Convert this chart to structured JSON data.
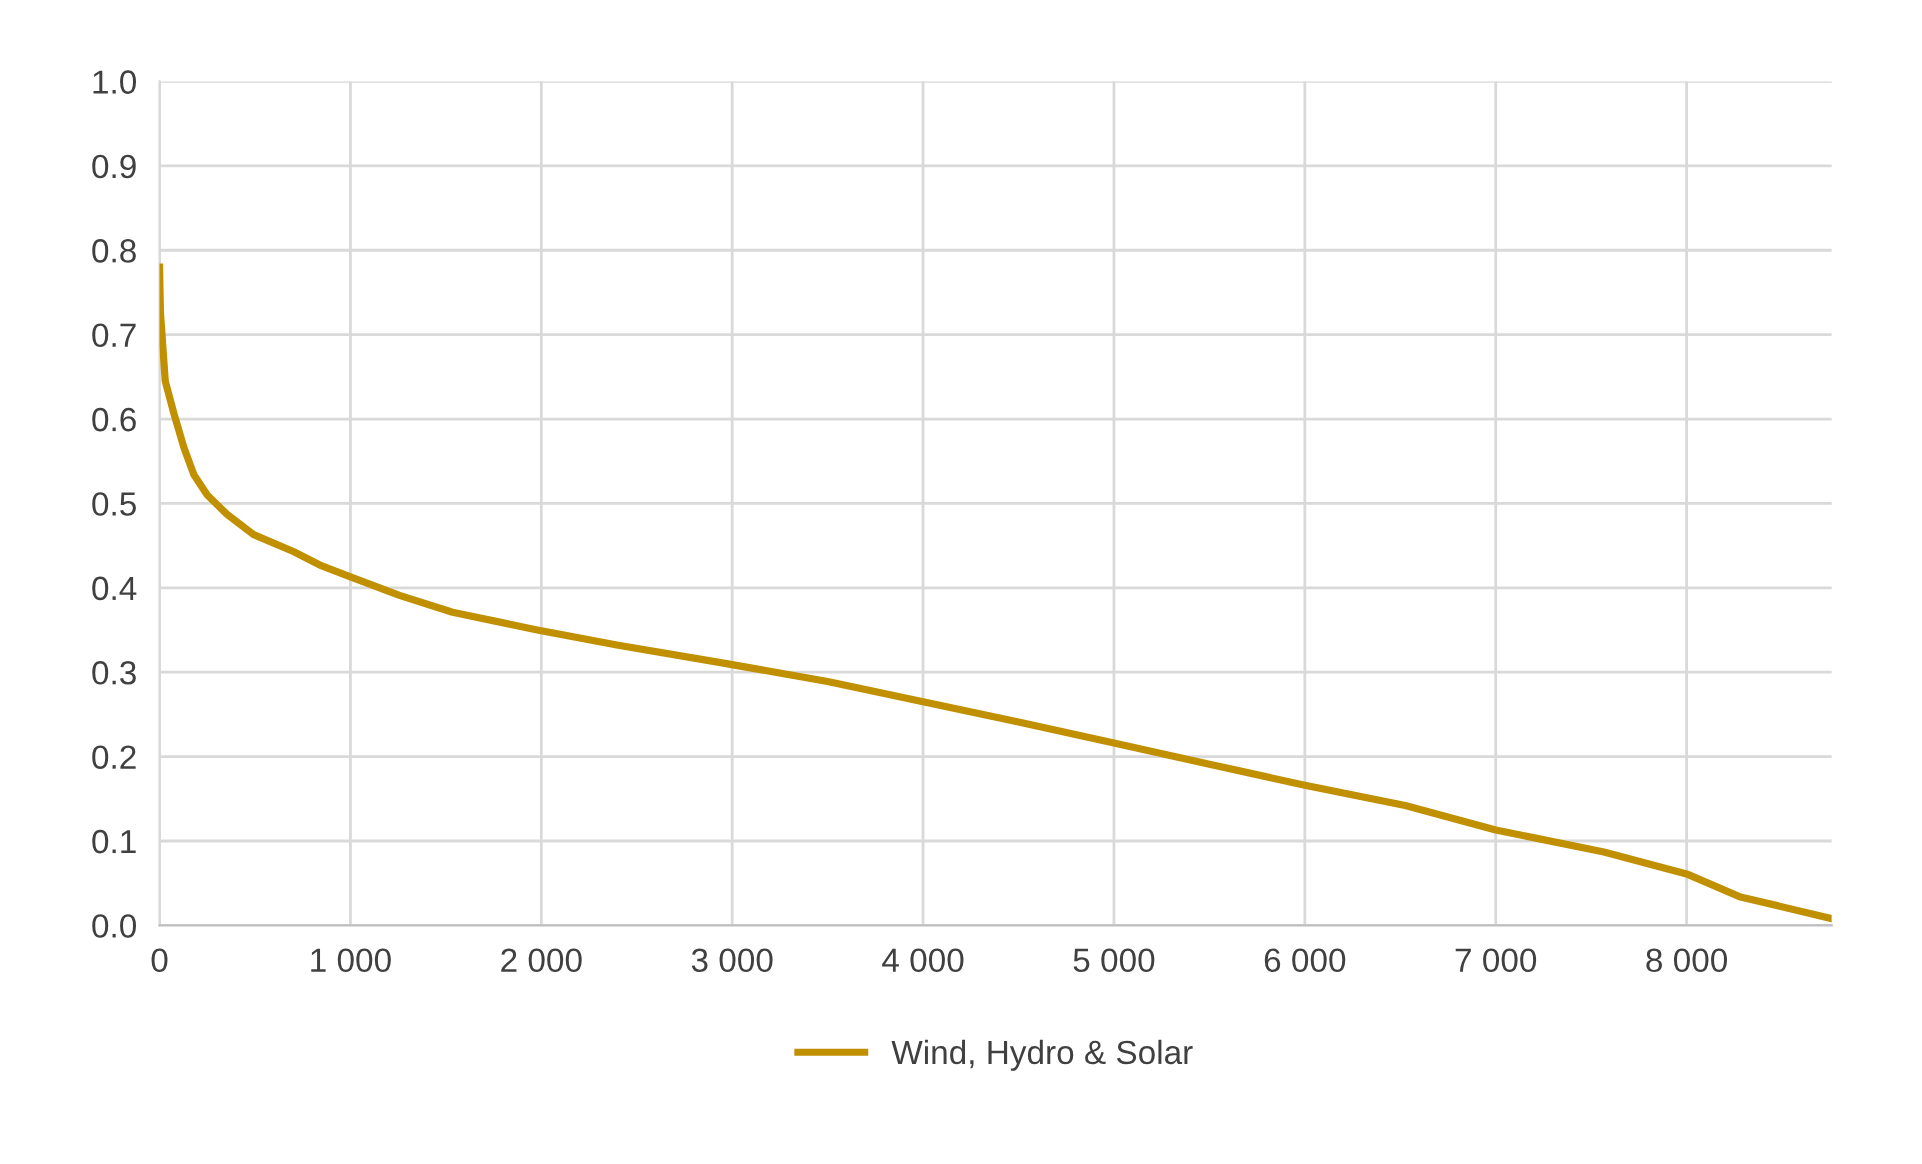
{
  "chart_data": {
    "type": "line",
    "xlim": [
      0,
      8760
    ],
    "ylim": [
      0,
      1.0
    ],
    "xticks": [
      {
        "value": 0,
        "label": "0"
      },
      {
        "value": 1000,
        "label": "1 000"
      },
      {
        "value": 2000,
        "label": "2 000"
      },
      {
        "value": 3000,
        "label": "3 000"
      },
      {
        "value": 4000,
        "label": "4 000"
      },
      {
        "value": 5000,
        "label": "5 000"
      },
      {
        "value": 6000,
        "label": "6 000"
      },
      {
        "value": 7000,
        "label": "7 000"
      },
      {
        "value": 8000,
        "label": "8 000"
      }
    ],
    "yticks": [
      {
        "value": 0,
        "label": "0.0"
      },
      {
        "value": 0.1,
        "label": "0.1"
      },
      {
        "value": 0.2,
        "label": "0.2"
      },
      {
        "value": 0.3,
        "label": "0.3"
      },
      {
        "value": 0.4,
        "label": "0.4"
      },
      {
        "value": 0.5,
        "label": "0.5"
      },
      {
        "value": 0.6,
        "label": "0.6"
      },
      {
        "value": 0.7,
        "label": "0.7"
      },
      {
        "value": 0.8,
        "label": "0.8"
      },
      {
        "value": 0.9,
        "label": "0.9"
      },
      {
        "value": 1.0,
        "label": "1.0"
      }
    ],
    "grid": true,
    "legend": "bottom",
    "marker": "none",
    "line_style": "solid",
    "series": [
      {
        "name": "Wind, Hydro & Solar",
        "color": "#c09000",
        "x": [
          0,
          5,
          30,
          76,
          128,
          180,
          250,
          354,
          493,
          701,
          840,
          1000,
          1257,
          1535,
          1979,
          2403,
          2924,
          3500,
          4000,
          4500,
          5000,
          5500,
          6000,
          6526,
          7000,
          7567,
          8000,
          8277,
          8760
        ],
        "values": [
          0.78,
          0.725,
          0.645,
          0.606,
          0.566,
          0.534,
          0.51,
          0.487,
          0.463,
          0.443,
          0.427,
          0.413,
          0.391,
          0.371,
          0.35,
          0.332,
          0.312,
          0.289,
          0.265,
          0.241,
          0.216,
          0.191,
          0.166,
          0.142,
          0.113,
          0.087,
          0.061,
          0.034,
          0.008
        ]
      }
    ]
  }
}
